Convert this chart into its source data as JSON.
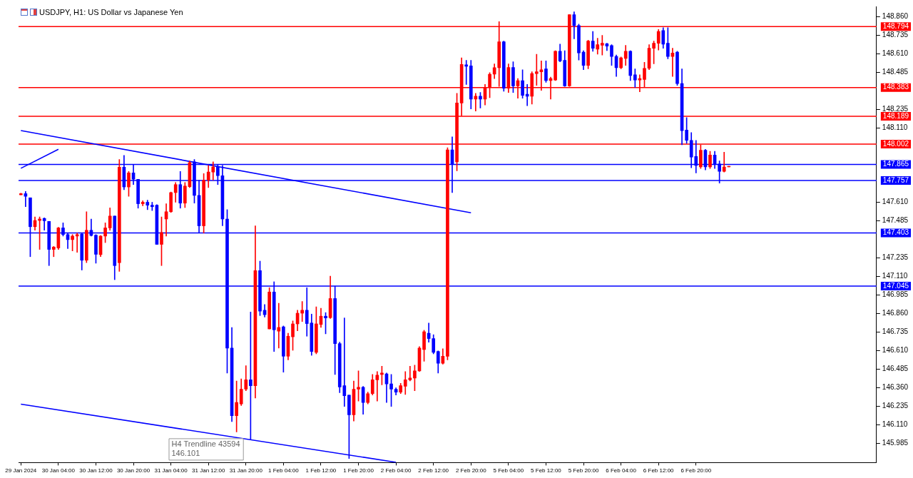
{
  "chart_data": {
    "type": "candlestick",
    "title": "USDJPY, H1: US Dollar vs Japanese Yen",
    "categories": [
      "29 Jan 2024",
      null,
      null,
      null,
      null,
      null,
      null,
      null,
      "30 Jan 04:00",
      null,
      null,
      null,
      null,
      null,
      null,
      null,
      "30 Jan 12:00",
      null,
      null,
      null,
      null,
      null,
      null,
      null,
      "30 Jan 20:00",
      null,
      null,
      null,
      null,
      null,
      null,
      null,
      "31 Jan 04:00",
      null,
      null,
      null,
      null,
      null,
      null,
      null,
      "31 Jan 12:00",
      null,
      null,
      null,
      null,
      null,
      null,
      null,
      "31 Jan 20:00",
      null,
      null,
      null,
      null,
      null,
      null,
      null,
      "1 Feb 04:00",
      null,
      null,
      null,
      null,
      null,
      null,
      null,
      "1 Feb 12:00",
      null,
      null,
      null,
      null,
      null,
      null,
      null,
      "1 Feb 20:00",
      null,
      null,
      null,
      null,
      null,
      null,
      null,
      "2 Feb 04:00",
      null,
      null,
      null,
      null,
      null,
      null,
      null,
      "2 Feb 12:00",
      null,
      null,
      null,
      null,
      null,
      null,
      null,
      "2 Feb 20:00",
      null,
      null,
      null,
      null,
      null,
      null,
      null,
      "5 Feb 04:00",
      null,
      null,
      null,
      null,
      null,
      null,
      null,
      "5 Feb 12:00",
      null,
      null,
      null,
      null,
      null,
      null,
      null,
      "5 Feb 20:00",
      null,
      null,
      null,
      null,
      null,
      null,
      null,
      "6 Feb 04:00",
      null,
      null,
      null,
      null,
      null,
      null,
      null,
      "6 Feb 12:00",
      null,
      null,
      null,
      null,
      null,
      null,
      null,
      "6 Feb 20:00",
      null,
      null,
      null,
      null,
      null,
      null,
      null,
      null,
      null,
      null,
      null,
      null,
      null,
      null,
      null,
      null,
      null,
      null,
      null,
      null,
      null,
      null,
      null,
      null,
      null,
      null,
      null,
      null,
      null,
      null,
      null,
      null,
      null,
      null,
      null,
      null,
      null,
      null
    ],
    "ohlc": [
      [
        147.66,
        147.671,
        147.66,
        147.668
      ],
      [
        147.668,
        147.683,
        147.58,
        147.65
      ],
      [
        147.64,
        147.64,
        147.243,
        147.445
      ],
      [
        147.445,
        147.511,
        147.421,
        147.487
      ],
      [
        147.487,
        147.511,
        147.292,
        147.497
      ],
      [
        147.501,
        147.505,
        147.421,
        147.485
      ],
      [
        147.481,
        147.481,
        147.183,
        147.292
      ],
      [
        147.292,
        147.312,
        147.243,
        147.308
      ],
      [
        147.302,
        147.441,
        147.292,
        147.437
      ],
      [
        147.437,
        147.471,
        147.382,
        147.392
      ],
      [
        147.392,
        147.402,
        147.298,
        147.358
      ],
      [
        147.358,
        147.392,
        147.282,
        147.382
      ],
      [
        147.382,
        147.402,
        147.273,
        147.392
      ],
      [
        147.396,
        147.402,
        147.153,
        147.219
      ],
      [
        147.219,
        147.546,
        147.203,
        147.421
      ],
      [
        147.421,
        147.497,
        147.382,
        147.386
      ],
      [
        147.388,
        147.392,
        147.199,
        147.259
      ],
      [
        147.257,
        147.386,
        147.243,
        147.382
      ],
      [
        147.382,
        147.471,
        147.338,
        147.437
      ],
      [
        147.437,
        147.572,
        147.421,
        147.517
      ],
      [
        147.517,
        147.517,
        147.088,
        147.183
      ],
      [
        147.203,
        147.898,
        147.144,
        147.846
      ],
      [
        147.846,
        147.926,
        147.695,
        147.713
      ],
      [
        147.713,
        147.818,
        147.65,
        147.808
      ],
      [
        147.808,
        147.862,
        147.729,
        147.765
      ],
      [
        147.765,
        147.765,
        147.57,
        147.6
      ],
      [
        147.6,
        147.62,
        147.586,
        147.61
      ],
      [
        147.61,
        147.624,
        147.56,
        147.59
      ],
      [
        147.59,
        147.61,
        147.554,
        147.58
      ],
      [
        147.59,
        147.594,
        147.326,
        147.326
      ],
      [
        147.326,
        147.511,
        147.183,
        147.406
      ],
      [
        147.497,
        147.6,
        147.382,
        147.546
      ],
      [
        147.546,
        147.679,
        147.541,
        147.675
      ],
      [
        147.675,
        147.743,
        147.61,
        147.729
      ],
      [
        147.729,
        147.818,
        147.57,
        147.604
      ],
      [
        147.604,
        147.743,
        147.574,
        147.719
      ],
      [
        147.715,
        147.888,
        147.709,
        147.878
      ],
      [
        147.882,
        147.898,
        147.604,
        147.656
      ],
      [
        147.656,
        147.759,
        147.406,
        147.451
      ],
      [
        147.451,
        147.803,
        147.402,
        147.759
      ],
      [
        147.759,
        147.858,
        147.709,
        147.814
      ],
      [
        147.814,
        147.882,
        147.759,
        147.848
      ],
      [
        147.848,
        147.862,
        147.729,
        147.789
      ],
      [
        147.789,
        147.858,
        147.451,
        147.497
      ],
      [
        147.497,
        147.56,
        146.459,
        146.627
      ],
      [
        146.627,
        146.766,
        146.131,
        146.171
      ],
      [
        146.171,
        146.405,
        146.062,
        146.26
      ],
      [
        146.25,
        146.419,
        146.24,
        146.35
      ],
      [
        146.35,
        146.508,
        146.34,
        146.413
      ],
      [
        146.413,
        146.87,
        146.008,
        146.373
      ],
      [
        146.373,
        147.451,
        146.29,
        147.149
      ],
      [
        147.149,
        147.213,
        146.846,
        146.876
      ],
      [
        146.882,
        146.921,
        146.836,
        146.852
      ],
      [
        146.756,
        147.034,
        146.756,
        147.005
      ],
      [
        147.005,
        147.074,
        146.604,
        146.75
      ],
      [
        146.741,
        146.929,
        146.627,
        146.766
      ],
      [
        146.77,
        146.776,
        146.465,
        146.572
      ],
      [
        146.572,
        146.727,
        146.548,
        146.707
      ],
      [
        146.703,
        146.81,
        146.612,
        146.79
      ],
      [
        146.79,
        146.882,
        146.743,
        146.862
      ],
      [
        146.862,
        146.941,
        146.806,
        146.882
      ],
      [
        146.882,
        147.034,
        146.707,
        146.792
      ],
      [
        146.796,
        146.856,
        146.578,
        146.604
      ],
      [
        146.598,
        146.905,
        146.588,
        146.79
      ],
      [
        146.786,
        146.895,
        146.766,
        146.842
      ],
      [
        146.842,
        146.866,
        146.723,
        146.83
      ],
      [
        146.832,
        147.112,
        146.826,
        146.961
      ],
      [
        146.961,
        147.044,
        146.449,
        146.657
      ],
      [
        146.657,
        146.667,
        146.326,
        146.365
      ],
      [
        146.373,
        146.83,
        146.234,
        146.306
      ],
      [
        146.31,
        146.31,
        145.883,
        146.177
      ],
      [
        146.177,
        146.405,
        146.135,
        146.35
      ],
      [
        146.35,
        146.473,
        146.27,
        146.363
      ],
      [
        146.363,
        146.369,
        146.181,
        146.26
      ],
      [
        146.26,
        146.33,
        146.25,
        146.32
      ],
      [
        146.32,
        146.449,
        146.31,
        146.413
      ],
      [
        146.413,
        146.469,
        146.27,
        146.445
      ],
      [
        146.449,
        146.504,
        146.379,
        146.459
      ],
      [
        146.453,
        146.459,
        146.26,
        146.385
      ],
      [
        146.385,
        146.449,
        146.234,
        146.35
      ],
      [
        146.35,
        146.359,
        146.31,
        146.33
      ],
      [
        146.33,
        146.389,
        146.32,
        146.373
      ],
      [
        146.369,
        146.469,
        146.314,
        146.413
      ],
      [
        146.413,
        146.504,
        146.405,
        146.425
      ],
      [
        146.425,
        146.512,
        146.34,
        146.473
      ],
      [
        146.473,
        146.637,
        146.469,
        146.627
      ],
      [
        146.617,
        146.747,
        146.538,
        146.737
      ],
      [
        146.727,
        146.796,
        146.667,
        146.691
      ],
      [
        146.691,
        146.717,
        146.588,
        146.598
      ],
      [
        146.604,
        146.608,
        146.459,
        146.524
      ],
      [
        146.524,
        146.623,
        146.518,
        146.572
      ],
      [
        146.572,
        147.977,
        146.548,
        147.963
      ],
      [
        147.963,
        148.051,
        147.675,
        147.868
      ],
      [
        147.882,
        148.344,
        147.822,
        148.279
      ],
      [
        148.279,
        148.583,
        148.192,
        148.539
      ],
      [
        148.537,
        148.567,
        148.404,
        148.527
      ],
      [
        148.529,
        148.567,
        148.239,
        148.305
      ],
      [
        148.305,
        148.344,
        148.225,
        148.325
      ],
      [
        148.325,
        148.35,
        148.245,
        148.305
      ],
      [
        148.305,
        148.404,
        148.265,
        148.384
      ],
      [
        148.384,
        148.483,
        148.315,
        148.473
      ],
      [
        148.473,
        148.543,
        148.444,
        148.517
      ],
      [
        148.517,
        148.827,
        148.39,
        148.692
      ],
      [
        148.692,
        148.696,
        148.358,
        148.378
      ],
      [
        148.378,
        148.543,
        148.35,
        148.519
      ],
      [
        148.519,
        148.557,
        148.35,
        148.394
      ],
      [
        148.394,
        148.444,
        148.311,
        148.43
      ],
      [
        148.43,
        148.503,
        148.311,
        148.331
      ],
      [
        148.338,
        148.404,
        148.261,
        148.325
      ],
      [
        148.325,
        148.489,
        148.271,
        148.477
      ],
      [
        148.477,
        148.608,
        148.398,
        148.489
      ],
      [
        148.489,
        148.563,
        148.364,
        148.503
      ],
      [
        148.509,
        148.563,
        148.418,
        148.43
      ],
      [
        148.43,
        148.454,
        148.305,
        148.444
      ],
      [
        148.434,
        148.632,
        148.43,
        148.628
      ],
      [
        148.628,
        148.676,
        148.557,
        148.563
      ],
      [
        148.567,
        148.632,
        148.39,
        148.394
      ],
      [
        148.394,
        148.874,
        148.39,
        148.874
      ],
      [
        148.874,
        148.894,
        148.712,
        148.801
      ],
      [
        148.801,
        148.811,
        148.569,
        148.616
      ],
      [
        148.622,
        148.632,
        148.503,
        148.533
      ],
      [
        148.533,
        148.702,
        148.509,
        148.696
      ],
      [
        148.696,
        148.761,
        148.628,
        148.648
      ],
      [
        148.642,
        148.716,
        148.608,
        148.672
      ],
      [
        148.668,
        148.735,
        148.602,
        148.682
      ],
      [
        148.678,
        148.682,
        148.632,
        148.662
      ],
      [
        148.666,
        148.672,
        148.533,
        148.593
      ],
      [
        148.593,
        148.602,
        148.458,
        148.517
      ],
      [
        148.517,
        148.589,
        148.509,
        148.583
      ],
      [
        148.579,
        148.668,
        148.533,
        148.628
      ],
      [
        148.628,
        148.632,
        148.43,
        148.464
      ],
      [
        148.469,
        148.509,
        148.384,
        148.434
      ],
      [
        148.434,
        148.469,
        148.354,
        148.444
      ],
      [
        148.438,
        148.553,
        148.384,
        148.513
      ],
      [
        148.513,
        148.672,
        148.503,
        148.648
      ],
      [
        148.648,
        148.696,
        148.543,
        148.682
      ],
      [
        148.682,
        148.775,
        148.636,
        148.761
      ],
      [
        148.767,
        148.787,
        148.648,
        148.676
      ],
      [
        148.682,
        148.787,
        148.577,
        148.593
      ],
      [
        148.593,
        148.648,
        148.458,
        148.616
      ],
      [
        148.622,
        148.628,
        148.398,
        148.41
      ],
      [
        148.41,
        148.509,
        147.997,
        148.092
      ],
      [
        148.096,
        148.18,
        148.007,
        148.027
      ],
      [
        148.027,
        148.08,
        147.842,
        147.914
      ],
      [
        147.918,
        148.027,
        147.808,
        147.858
      ],
      [
        147.848,
        147.997,
        147.838,
        147.961
      ],
      [
        147.961,
        147.967,
        147.828,
        147.848
      ],
      [
        147.848,
        147.953,
        147.838,
        147.928
      ],
      [
        147.928,
        147.953,
        147.838,
        147.868
      ],
      [
        147.868,
        147.888,
        147.739,
        147.818
      ],
      [
        147.818,
        147.947,
        147.814,
        147.848
      ],
      [
        147.848,
        147.852,
        147.848,
        147.852
      ],
      null,
      null,
      null,
      null,
      null,
      null,
      null,
      null,
      null,
      null,
      null,
      null,
      null,
      null,
      null,
      null,
      null,
      null,
      null,
      null,
      null,
      null,
      null,
      null,
      null,
      null,
      null,
      null,
      null,
      null,
      null
    ],
    "colors": [
      "#ff0000",
      "#0000ff",
      "#0000ff",
      "#ff0000",
      "#ff0000",
      "#0000ff",
      "#0000ff",
      "#ff0000",
      "#ff0000",
      "#0000ff",
      "#0000ff",
      "#ff0000",
      "#ff0000",
      "#0000ff",
      "#ff0000",
      "#0000ff",
      "#0000ff",
      "#ff0000",
      "#ff0000",
      "#ff0000",
      "#0000ff",
      "#ff0000",
      "#0000ff",
      "#ff0000",
      "#0000ff",
      "#0000ff",
      "#ff0000",
      "#0000ff",
      "#0000ff",
      "#0000ff",
      "#ff0000",
      "#ff0000",
      "#ff0000",
      "#ff0000",
      "#0000ff",
      "#ff0000",
      "#ff0000",
      "#0000ff",
      "#0000ff",
      "#ff0000",
      "#ff0000",
      "#ff0000",
      "#0000ff",
      "#0000ff",
      "#0000ff",
      "#0000ff",
      "#ff0000",
      "#ff0000",
      "#ff0000",
      "#0000ff",
      "#ff0000",
      "#0000ff",
      "#0000ff",
      "#ff0000",
      "#0000ff",
      "#ff0000",
      "#0000ff",
      "#ff0000",
      "#ff0000",
      "#ff0000",
      "#ff0000",
      "#0000ff",
      "#0000ff",
      "#ff0000",
      "#ff0000",
      "#0000ff",
      "#ff0000",
      "#0000ff",
      "#0000ff",
      "#0000ff",
      "#0000ff",
      "#ff0000",
      "#ff0000",
      "#0000ff",
      "#ff0000",
      "#ff0000",
      "#ff0000",
      "#ff0000",
      "#0000ff",
      "#0000ff",
      "#0000ff",
      "#ff0000",
      "#ff0000",
      "#ff0000",
      "#ff0000",
      "#ff0000",
      "#ff0000",
      "#0000ff",
      "#0000ff",
      "#0000ff",
      "#ff0000",
      "#ff0000",
      "#0000ff",
      "#ff0000",
      "#ff0000",
      "#0000ff",
      "#0000ff",
      "#ff0000",
      "#0000ff",
      "#ff0000",
      "#ff0000",
      "#ff0000",
      "#ff0000",
      "#0000ff",
      "#ff0000",
      "#0000ff",
      "#ff0000",
      "#0000ff",
      "#0000ff",
      "#ff0000",
      "#ff0000",
      "#ff0000",
      "#0000ff",
      "#ff0000",
      "#ff0000",
      "#0000ff",
      "#0000ff",
      "#ff0000",
      "#0000ff",
      "#0000ff",
      "#0000ff",
      "#ff0000",
      "#0000ff",
      "#ff0000",
      "#ff0000",
      "#0000ff",
      "#0000ff",
      "#0000ff",
      "#ff0000",
      "#ff0000",
      "#0000ff",
      "#0000ff",
      "#ff0000",
      "#ff0000",
      "#ff0000",
      "#ff0000",
      "#ff0000",
      "#0000ff",
      "#0000ff",
      "#ff0000",
      "#0000ff",
      "#0000ff",
      "#0000ff",
      "#0000ff",
      "#0000ff",
      "#ff0000",
      "#0000ff",
      "#ff0000",
      "#0000ff",
      "#0000ff",
      "#ff0000",
      "#ff0000",
      null,
      null,
      null,
      null,
      null,
      null,
      null,
      null,
      null,
      null,
      null,
      null,
      null,
      null,
      null,
      null,
      null,
      null,
      null,
      null,
      null,
      null,
      null,
      null,
      null,
      null,
      null,
      null,
      null,
      null,
      null
    ],
    "series": [
      {
        "type": "line",
        "color": "#0000ff",
        "x": [
          "29 Jan 2024",
          "2 Feb 20:00"
        ],
        "values": [
          148.093,
          147.539
        ]
      },
      {
        "type": "line",
        "color": "#0000ff",
        "x": [
          "29 Jan 2024",
          "2 Feb 04:00"
        ],
        "values": [
          146.249,
          145.857
        ]
      },
      {
        "type": "line",
        "color": "#0000ff",
        "x": [
          "29 Jan 2024",
          "30 Jan 04:00"
        ],
        "values": [
          147.839,
          147.967
        ]
      }
    ],
    "ref_lines": [
      {
        "axis": "y",
        "value": 148.794,
        "label": "148.794",
        "color": "#ff0000"
      },
      {
        "axis": "y",
        "value": 148.383,
        "label": "148.383",
        "color": "#ff0000"
      },
      {
        "axis": "y",
        "value": 148.189,
        "label": "148.189",
        "color": "#ff0000"
      },
      {
        "axis": "y",
        "value": 148.002,
        "label": "148.002",
        "color": "#ff0000"
      },
      {
        "axis": "y",
        "value": 147.865,
        "label": "147.865",
        "color": "#0000ff"
      },
      {
        "axis": "y",
        "value": 147.757,
        "label": "147.757",
        "color": "#0000ff"
      },
      {
        "axis": "y",
        "value": 147.403,
        "label": "147.403",
        "color": "#0000ff"
      },
      {
        "axis": "y",
        "value": 147.045,
        "label": "147.045",
        "color": "#0000ff"
      }
    ],
    "annotations": [
      "H4 Trendline 43594\n146.101"
    ],
    "ylim": [
      145.855,
      148.93
    ],
    "yticks": [
      {
        "value": 148.86,
        "label": "148.860"
      },
      {
        "value": 148.735,
        "label": "148.735"
      },
      {
        "value": 148.61,
        "label": "148.610"
      },
      {
        "value": 148.485,
        "label": "148.485"
      },
      {
        "value": 148.235,
        "label": "148.235"
      },
      {
        "value": 148.11,
        "label": "148.110"
      },
      {
        "value": 147.61,
        "label": "147.610"
      },
      {
        "value": 147.485,
        "label": "147.485"
      },
      {
        "value": 147.235,
        "label": "147.235"
      },
      {
        "value": 147.11,
        "label": "147.110"
      },
      {
        "value": 146.985,
        "label": "146.985"
      },
      {
        "value": 146.86,
        "label": "146.860"
      },
      {
        "value": 146.735,
        "label": "146.735"
      },
      {
        "value": 146.61,
        "label": "146.610"
      },
      {
        "value": 146.485,
        "label": "146.485"
      },
      {
        "value": 146.36,
        "label": "146.360"
      },
      {
        "value": 146.235,
        "label": "146.235"
      },
      {
        "value": 146.11,
        "label": "146.110"
      },
      {
        "value": 145.985,
        "label": "145.985"
      }
    ]
  }
}
